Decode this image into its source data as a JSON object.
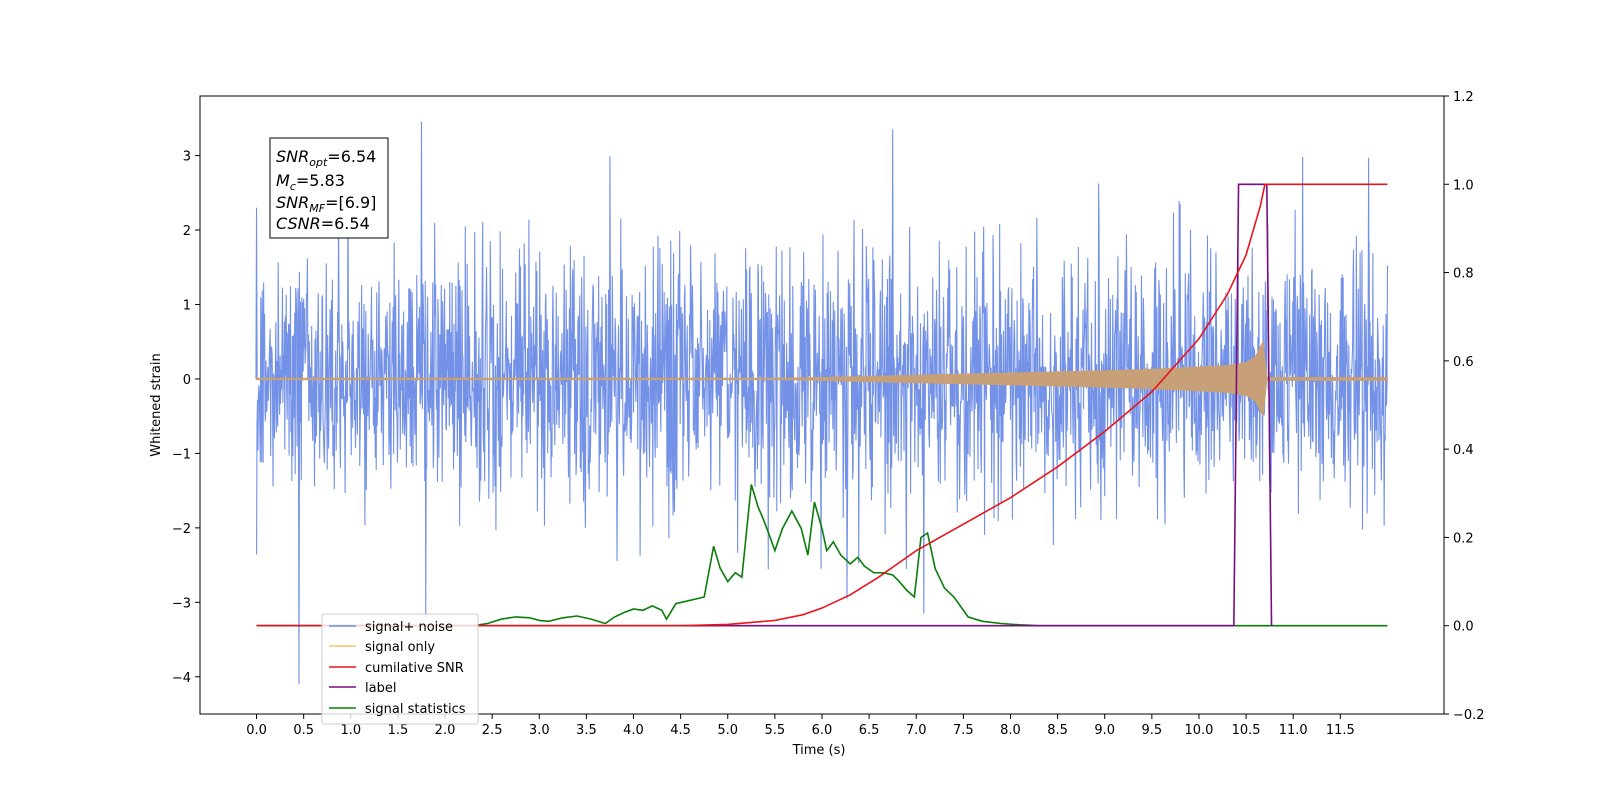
{
  "chart_data": {
    "type": "line",
    "xlabel": "Time (s)",
    "ylabel": "Whitened strain",
    "xlim": [
      -0.6,
      12.6
    ],
    "ylim_left": [
      -4.5,
      3.8
    ],
    "ylim_right": [
      -0.2,
      1.2
    ],
    "x_ticks": [
      "0.0",
      "0.5",
      "1.0",
      "1.5",
      "2.0",
      "2.5",
      "3.0",
      "3.5",
      "4.0",
      "4.5",
      "5.0",
      "5.5",
      "6.0",
      "6.5",
      "7.0",
      "7.5",
      "8.0",
      "8.5",
      "9.0",
      "9.5",
      "10.0",
      "10.5",
      "11.0",
      "11.5"
    ],
    "y_ticks_left": [
      "3",
      "2",
      "1",
      "0",
      "−1",
      "−2",
      "−3",
      "−4"
    ],
    "y_ticks_right": [
      "1.2",
      "1.0",
      "0.8",
      "0.6",
      "0.4",
      "0.2",
      "0.0",
      "−0.2"
    ],
    "annotation": {
      "lines": [
        {
          "base": "SNR",
          "sub": "opt",
          "value": "=6.54"
        },
        {
          "base": "M",
          "sub": "c",
          "value": "=5.83"
        },
        {
          "base": "SNR",
          "sub": "MF",
          "value": "=[6.9]"
        },
        {
          "base": "CSNR",
          "sub": "",
          "value": "=6.54"
        }
      ]
    },
    "legend": {
      "position": "lower-left",
      "entries": [
        {
          "label": "signal+ noise",
          "color": "#6b8be6"
        },
        {
          "label": "signal only",
          "color": "#f7c36b"
        },
        {
          "label": "cumilative SNR",
          "color": "#e8141b"
        },
        {
          "label": "label",
          "color": "#7b0c80"
        },
        {
          "label": "signal statistics",
          "color": "#0b7d0b"
        }
      ]
    },
    "series": [
      {
        "name": "signal+ noise",
        "axis": "left",
        "color": "#6b8be6",
        "x_range": [
          0.0,
          12.0
        ],
        "envelope_typical_max": 1.6,
        "peaks": [
          [
            0.0,
            2.3
          ],
          [
            0.45,
            -4.1
          ],
          [
            1.75,
            3.45
          ],
          [
            3.75,
            2.99
          ],
          [
            6.75,
            3.35
          ],
          [
            7.08,
            -3.15
          ],
          [
            11.1,
            2.98
          ],
          [
            11.8,
            2.97
          ]
        ]
      },
      {
        "name": "signal only",
        "axis": "left",
        "color": "#c8a077",
        "envelope": {
          "x": [
            0.0,
            5.5,
            6.0,
            7.0,
            8.0,
            9.0,
            9.5,
            10.0,
            10.3,
            10.5,
            10.6,
            10.68,
            10.72,
            12.0
          ],
          "amp": [
            0.01,
            0.01,
            0.02,
            0.05,
            0.08,
            0.11,
            0.13,
            0.16,
            0.18,
            0.22,
            0.3,
            0.5,
            0.02,
            0.02
          ]
        }
      },
      {
        "name": "cumilative SNR",
        "axis": "right",
        "color": "#e8141b",
        "x": [
          0.0,
          4.5,
          5.0,
          5.5,
          5.8,
          6.0,
          6.3,
          6.6,
          7.0,
          7.5,
          8.0,
          8.5,
          9.0,
          9.5,
          10.0,
          10.3,
          10.5,
          10.65,
          10.7,
          12.0
        ],
        "y": [
          0.0,
          0.0,
          0.003,
          0.012,
          0.025,
          0.04,
          0.07,
          0.11,
          0.17,
          0.23,
          0.29,
          0.36,
          0.44,
          0.53,
          0.65,
          0.75,
          0.84,
          0.95,
          1.0,
          1.0
        ]
      },
      {
        "name": "label",
        "axis": "right",
        "color": "#7b0c80",
        "x": [
          0.0,
          10.37,
          10.42,
          10.72,
          10.77
        ],
        "y": [
          0.0,
          0.0,
          1.0,
          1.0,
          0.0
        ]
      },
      {
        "name": "signal statistics",
        "axis": "right",
        "color": "#0b7d0b",
        "x": [
          0.0,
          2.3,
          2.45,
          2.6,
          2.75,
          2.9,
          3.0,
          3.1,
          3.25,
          3.4,
          3.55,
          3.7,
          3.8,
          3.9,
          4.0,
          4.1,
          4.2,
          4.3,
          4.35,
          4.45,
          4.55,
          4.65,
          4.75,
          4.85,
          4.92,
          5.0,
          5.08,
          5.15,
          5.25,
          5.32,
          5.38,
          5.45,
          5.5,
          5.58,
          5.68,
          5.78,
          5.85,
          5.92,
          6.0,
          6.05,
          6.12,
          6.2,
          6.3,
          6.38,
          6.45,
          6.55,
          6.65,
          6.75,
          6.82,
          6.9,
          6.98,
          7.05,
          7.12,
          7.2,
          7.3,
          7.4,
          7.55,
          7.7,
          7.9,
          8.1,
          8.3,
          8.6,
          12.0
        ],
        "y": [
          0.0,
          0.0,
          0.005,
          0.015,
          0.02,
          0.018,
          0.012,
          0.01,
          0.018,
          0.022,
          0.015,
          0.005,
          0.02,
          0.03,
          0.038,
          0.035,
          0.045,
          0.035,
          0.015,
          0.05,
          0.055,
          0.06,
          0.065,
          0.18,
          0.13,
          0.1,
          0.12,
          0.11,
          0.32,
          0.27,
          0.24,
          0.2,
          0.17,
          0.22,
          0.26,
          0.22,
          0.16,
          0.28,
          0.22,
          0.17,
          0.19,
          0.16,
          0.14,
          0.155,
          0.135,
          0.12,
          0.12,
          0.115,
          0.1,
          0.08,
          0.065,
          0.2,
          0.21,
          0.13,
          0.085,
          0.065,
          0.02,
          0.01,
          0.005,
          0.002,
          0.0,
          0.0,
          0.0
        ]
      }
    ]
  }
}
